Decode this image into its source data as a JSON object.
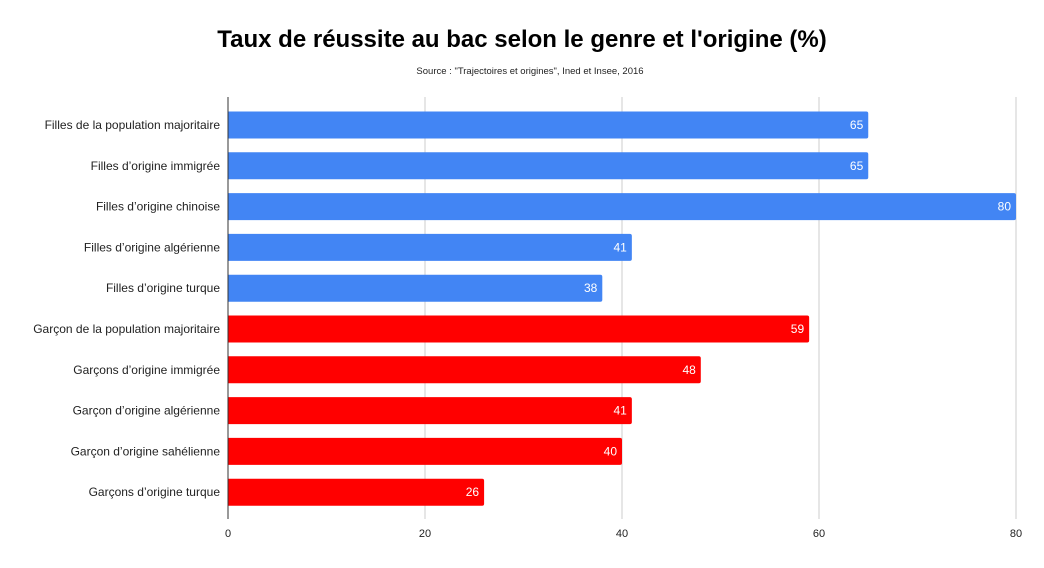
{
  "chart_data": {
    "type": "bar",
    "orientation": "horizontal",
    "title": "Taux de réussite au bac selon le genre et l'origine (%)",
    "subtitle": "Source : \"Trajectoires et origines\", Ined et Insee, 2016",
    "xlabel": "",
    "ylabel": "",
    "xlim": [
      0,
      80
    ],
    "xticks": [
      0,
      20,
      40,
      60,
      80
    ],
    "grid": true,
    "legend": "none",
    "categories": [
      "Filles de la population majoritaire",
      "Filles d’origine immigrée",
      "Filles d’origine chinoise",
      "Filles d’origine algérienne",
      "Filles d’origine turque",
      "Garçon de la population majoritaire",
      "Garçons d’origine immigrée",
      "Garçon d’origine algérienne",
      "Garçon d’origine sahélienne",
      "Garçons d’origine turque"
    ],
    "values": [
      65,
      65,
      80,
      41,
      38,
      59,
      48,
      41,
      40,
      26
    ],
    "groups": [
      "filles",
      "filles",
      "filles",
      "filles",
      "filles",
      "garcons",
      "garcons",
      "garcons",
      "garcons",
      "garcons"
    ],
    "colors": {
      "filles": "#4285f4",
      "garcons": "#ff0000",
      "grid": "#cccccc",
      "axis": "#333333"
    }
  }
}
